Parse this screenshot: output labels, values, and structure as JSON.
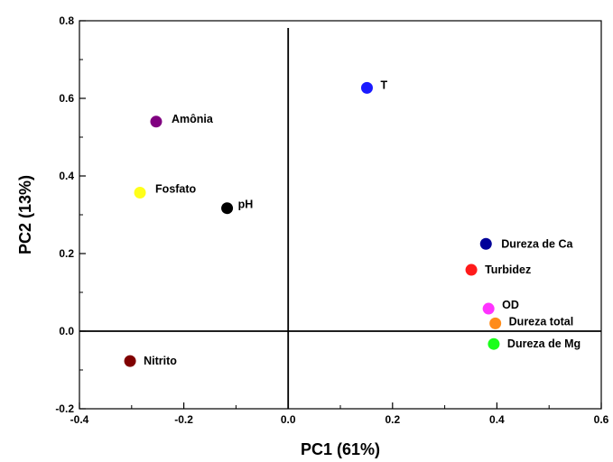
{
  "chart_data": {
    "type": "scatter",
    "title": "",
    "xlabel": "PC1 (61%)",
    "ylabel": "PC2 (13%)",
    "xlim": [
      -0.4,
      0.6
    ],
    "ylim": [
      -0.2,
      0.8
    ],
    "x_ticks": [
      "-0.4",
      "-0.2",
      "0.0",
      "0.2",
      "0.4",
      "0.6"
    ],
    "y_ticks": [
      "-0.2",
      "0.0",
      "0.2",
      "0.4",
      "0.6",
      "0.8"
    ],
    "reference_lines": {
      "x": 0,
      "y": 0
    },
    "grid": false,
    "points": [
      {
        "label": "T",
        "x": 0.151,
        "y": 0.627,
        "color": "#1a1aff"
      },
      {
        "label": "Amônia",
        "x": -0.253,
        "y": 0.54,
        "color": "#800080"
      },
      {
        "label": "Fosfato",
        "x": -0.284,
        "y": 0.357,
        "color": "#ffff1a"
      },
      {
        "label": "pH",
        "x": -0.117,
        "y": 0.317,
        "color": "#000000"
      },
      {
        "label": "Dureza de Ca",
        "x": 0.379,
        "y": 0.225,
        "color": "#000099"
      },
      {
        "label": "Turbidez",
        "x": 0.351,
        "y": 0.158,
        "color": "#ff1a1a"
      },
      {
        "label": "OD",
        "x": 0.384,
        "y": 0.058,
        "color": "#ff33ff"
      },
      {
        "label": "Dureza total",
        "x": 0.397,
        "y": 0.02,
        "color": "#ff8c1a"
      },
      {
        "label": "Dureza de Mg",
        "x": 0.394,
        "y": -0.033,
        "color": "#1aff1a"
      },
      {
        "label": "Nitrito",
        "x": -0.303,
        "y": -0.077,
        "color": "#800000"
      }
    ]
  }
}
